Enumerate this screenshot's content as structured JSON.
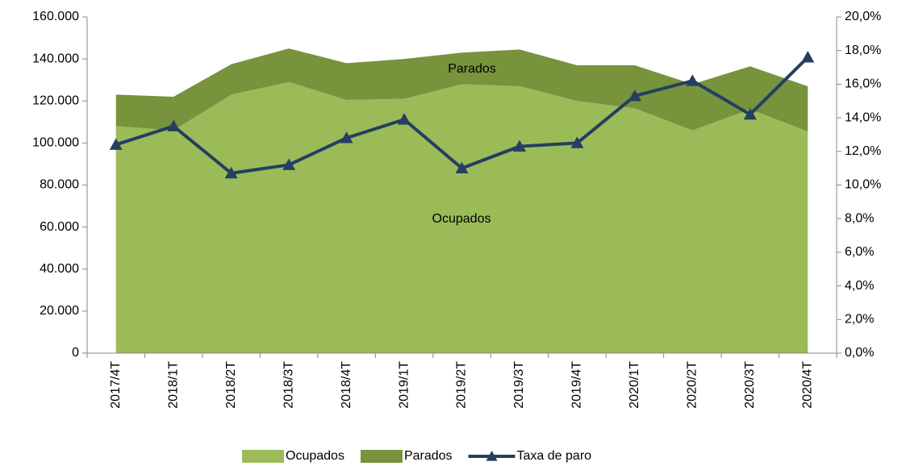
{
  "chart_data": {
    "type": "area",
    "categories": [
      "2017/4T",
      "2018/1T",
      "2018/2T",
      "2018/3T",
      "2018/4T",
      "2019/1T",
      "2019/2T",
      "2019/3T",
      "2019/4T",
      "2020/1T",
      "2020/2T",
      "2020/3T",
      "2020/4T"
    ],
    "series": [
      {
        "name": "Ocupados",
        "color": "#9bbb59",
        "values": [
          108000,
          106000,
          123000,
          129000,
          120500,
          121000,
          128000,
          127000,
          120000,
          116500,
          106000,
          116000,
          105500
        ]
      },
      {
        "name": "Parados",
        "color": "#77933c",
        "values": [
          15000,
          16000,
          14500,
          16000,
          17500,
          19000,
          15000,
          17500,
          17000,
          20500,
          22000,
          20500,
          21500
        ]
      },
      {
        "name": "Taxa de paro",
        "type": "line",
        "axis": "y2",
        "color": "#243f60",
        "values": [
          12.4,
          13.5,
          10.7,
          11.2,
          12.8,
          13.9,
          11.0,
          12.3,
          12.5,
          15.3,
          16.2,
          14.2,
          17.6
        ]
      }
    ],
    "annotations": [
      "Parados",
      "Ocupados"
    ],
    "ylim": [
      0,
      160000
    ],
    "yticks": [
      0,
      {
        "value": 20000,
        "label": "20.000"
      },
      {
        "value": 40000,
        "label": "40.000"
      },
      {
        "value": 60000,
        "label": "60.000"
      },
      {
        "value": 80000,
        "label": "80.000"
      },
      {
        "value": 100000,
        "label": "100.000"
      },
      {
        "value": 120000,
        "label": "120.000"
      },
      {
        "value": 140000,
        "label": "140.000"
      },
      {
        "value": 160000,
        "label": "160.000"
      }
    ],
    "y2lim": [
      0,
      20
    ],
    "y2ticks": [
      {
        "value": 0,
        "label": "0,0%"
      },
      {
        "value": 2,
        "label": "2,0%"
      },
      {
        "value": 4,
        "label": "4,0%"
      },
      {
        "value": 6,
        "label": "6,0%"
      },
      {
        "value": 8,
        "label": "8,0%"
      },
      {
        "value": 10,
        "label": "10,0%"
      },
      {
        "value": 12,
        "label": "12,0%"
      },
      {
        "value": 14,
        "label": "14,0%"
      },
      {
        "value": 16,
        "label": "16,0%"
      },
      {
        "value": 18,
        "label": "18,0%"
      },
      {
        "value": 20,
        "label": "20,0%"
      }
    ],
    "legend": "bottom"
  }
}
